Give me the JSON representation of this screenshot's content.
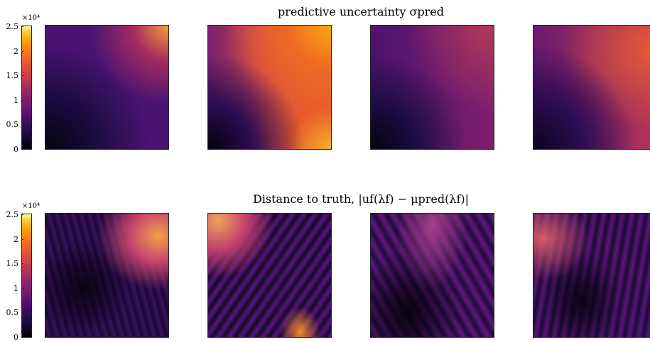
{
  "chart_data": [
    {
      "type": "heatmap",
      "title": "predictive uncertainty σpred",
      "colorbar": {
        "ticks": [
          "0",
          "0.5",
          "1",
          "1.5",
          "2",
          "2.5"
        ],
        "multiplier": "×10⁴",
        "range": [
          0,
          25000
        ]
      },
      "panels": 4,
      "colormap": "inferno"
    },
    {
      "type": "heatmap",
      "title": "Distance to truth, |uf(λf) − μpred(λf)|",
      "colorbar": {
        "ticks": [
          "0",
          "0.5",
          "1",
          "1.5",
          "2",
          "2.5"
        ],
        "multiplier": "×10⁴",
        "range": [
          0,
          25000
        ]
      },
      "panels": 4,
      "colormap": "inferno"
    }
  ],
  "colors": {
    "inferno_dark": "#000004",
    "inferno_purple": "#4a0c6b",
    "inferno_orange": "#ed6925",
    "inferno_yellow": "#fcffa4"
  }
}
